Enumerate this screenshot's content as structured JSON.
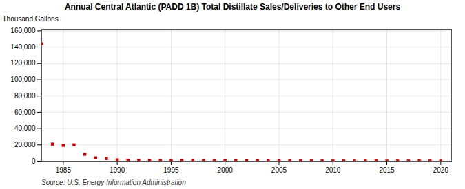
{
  "chart_data": {
    "type": "scatter",
    "title": "Annual Central Atlantic (PADD 1B) Total Distillate Sales/Deliveries to Other End Users",
    "ylabel": "Thousand Gallons",
    "source": "Source: U.S. Energy Information Administration",
    "x": [
      1983,
      1984,
      1985,
      1986,
      1987,
      1988,
      1989,
      1990,
      1991,
      1992,
      1993,
      1994,
      1995,
      1996,
      1997,
      1998,
      1999,
      2000,
      2001,
      2002,
      2003,
      2004,
      2005,
      2006,
      2007,
      2008,
      2009,
      2010,
      2011,
      2012,
      2013,
      2014,
      2015,
      2016,
      2017,
      2018,
      2019,
      2020
    ],
    "values": [
      144000,
      21000,
      19500,
      20000,
      8500,
      4000,
      3200,
      1500,
      800,
      600,
      500,
      400,
      350,
      600,
      500,
      400,
      300,
      350,
      300,
      250,
      300,
      250,
      250,
      200,
      200,
      150,
      150,
      150,
      150,
      150,
      150,
      150,
      100,
      100,
      100,
      150,
      100,
      100
    ],
    "color": "#cc0000",
    "marker": "square",
    "xlim": [
      1983,
      2021
    ],
    "xticks": [
      1985,
      1990,
      1995,
      2000,
      2005,
      2010,
      2015,
      2020
    ],
    "ylim": [
      0,
      162000
    ],
    "yticks": [
      0,
      {
        "value": 20000,
        "label": "20,000"
      },
      {
        "value": 40000,
        "label": "40,000"
      },
      {
        "value": 60000,
        "label": "60,000"
      },
      {
        "value": 80000,
        "label": "80,000"
      },
      {
        "value": 100000,
        "label": "100,000"
      },
      {
        "value": 120000,
        "label": "120,000"
      },
      {
        "value": 140000,
        "label": "140,000"
      },
      {
        "value": 160000,
        "label": "160,000"
      }
    ],
    "grid": true
  }
}
